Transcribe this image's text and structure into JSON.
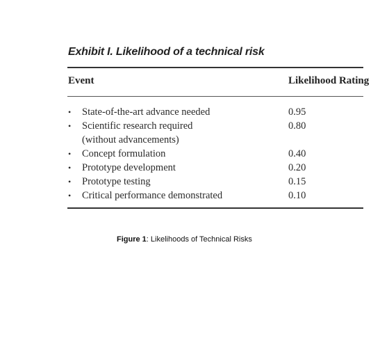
{
  "exhibit": {
    "title": "Exhibit I.  Likelihood of a technical risk",
    "headers": {
      "event": "Event",
      "rating": "Likelihood Rating"
    },
    "rows": [
      {
        "bullet": "•",
        "event": "State-of-the-art advance needed",
        "rating": "0.95"
      },
      {
        "bullet": "•",
        "event": "Scientific research required",
        "event_line2": "(without advancements)",
        "rating": "0.80"
      },
      {
        "bullet": "•",
        "event": "Concept formulation",
        "rating": "0.40"
      },
      {
        "bullet": "•",
        "event": "Prototype development",
        "rating": "0.20"
      },
      {
        "bullet": "•",
        "event": "Prototype testing",
        "rating": "0.15"
      },
      {
        "bullet": "•",
        "event": "Critical performance demonstrated",
        "rating": "0.10"
      }
    ]
  },
  "caption": {
    "label": "Figure 1",
    "text": ": Likelihoods of Technical Risks"
  }
}
